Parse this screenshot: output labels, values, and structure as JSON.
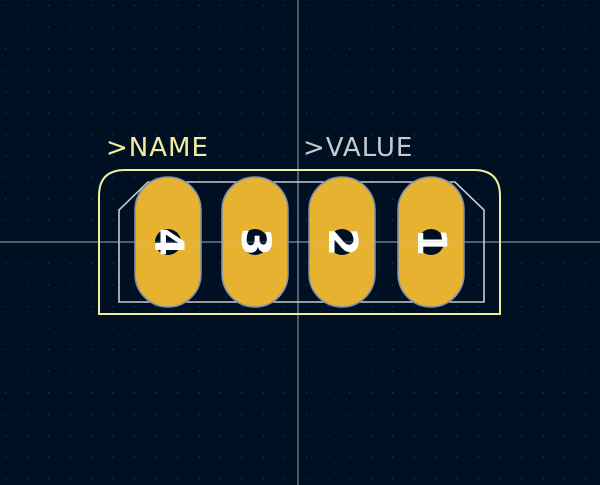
{
  "editor": {
    "footprint": {
      "name_field": ">NAME",
      "value_field": ">VALUE",
      "pads": [
        {
          "number": "4"
        },
        {
          "number": "3"
        },
        {
          "number": "2"
        },
        {
          "number": "1"
        }
      ]
    }
  },
  "colors": {
    "background": "#001023",
    "grid_dot": "#2b3a52",
    "crosshair": "#b9c2cc",
    "silkscreen_outline": "#f2eca0",
    "fab_outline": "#c9c9c9",
    "name_text": "#f2eca0",
    "value_text": "#c9c9c9",
    "pad_fill": "#e6b22f",
    "pad_edge": "#7d8fb0",
    "pad_number": "#ffffff"
  }
}
